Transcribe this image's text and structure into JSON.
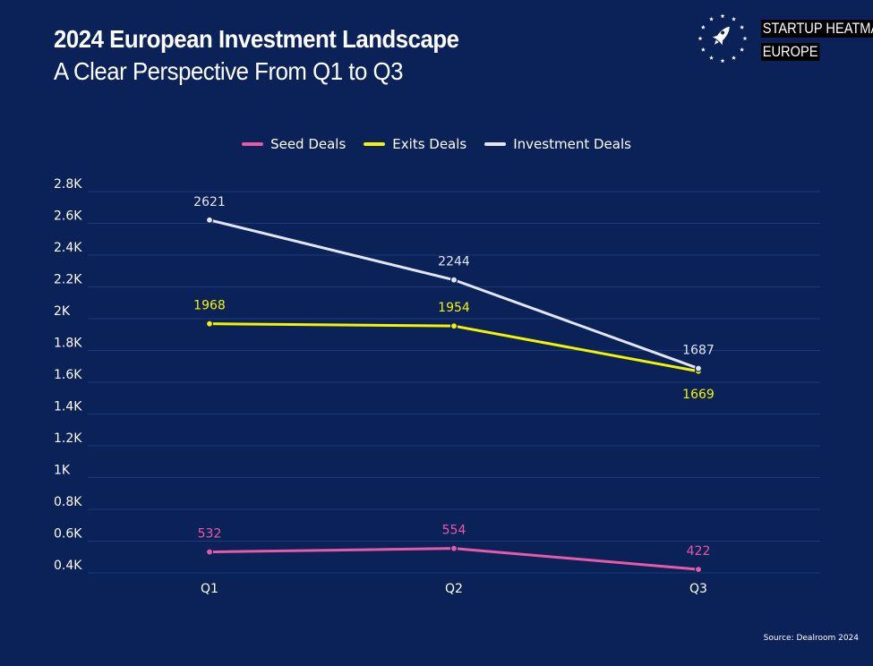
{
  "header": {
    "title": "2024 European Investment Landscape",
    "subtitle": "A Clear Perspective From Q1 to Q3"
  },
  "brand": {
    "line1": "STARTUP HEATMAP",
    "line2": "EUROPE",
    "icon": "rocket-stars-icon"
  },
  "legend": [
    {
      "label": "Seed Deals",
      "color": "#e85aa8"
    },
    {
      "label": "Exits Deals",
      "color": "#f4f400"
    },
    {
      "label": "Investment Deals",
      "color": "#e2e6f2"
    }
  ],
  "source": "Source:  Dealroom 2024",
  "chart_data": {
    "type": "line",
    "categories": [
      "Q1",
      "Q2",
      "Q3"
    ],
    "y_ticks": [
      {
        "value": 2800,
        "label": "2.8K"
      },
      {
        "value": 2600,
        "label": "2.6K"
      },
      {
        "value": 2400,
        "label": "2.4K"
      },
      {
        "value": 2200,
        "label": "2.2K"
      },
      {
        "value": 2000,
        "label": "2K"
      },
      {
        "value": 1800,
        "label": "1.8K"
      },
      {
        "value": 1600,
        "label": "1.6K"
      },
      {
        "value": 1400,
        "label": "1.4K"
      },
      {
        "value": 1200,
        "label": "1.2K"
      },
      {
        "value": 1000,
        "label": "1K"
      },
      {
        "value": 800,
        "label": "0.8K"
      },
      {
        "value": 600,
        "label": "0.6K"
      },
      {
        "value": 400,
        "label": "0.4K"
      }
    ],
    "ylim": [
      400,
      2800
    ],
    "grid": true,
    "legend_position": "top",
    "series": [
      {
        "name": "Seed Deals",
        "color": "#e85aa8",
        "values": [
          532,
          554,
          422
        ],
        "label_pos": [
          "above",
          "above",
          "above"
        ]
      },
      {
        "name": "Exits Deals",
        "color": "#f4f400",
        "values": [
          1968,
          1954,
          1669
        ],
        "label_pos": [
          "above",
          "above",
          "below"
        ]
      },
      {
        "name": "Investment Deals",
        "color": "#e2e6f2",
        "values": [
          2621,
          2244,
          1687
        ],
        "label_pos": [
          "above",
          "above",
          "above"
        ]
      }
    ]
  }
}
